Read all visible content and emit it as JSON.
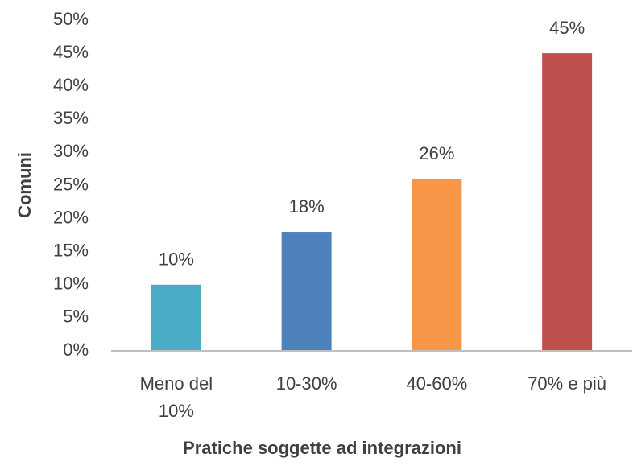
{
  "chart_data": {
    "type": "bar",
    "x_label": "Pratiche soggette ad integrazioni",
    "y_label": "Comuni",
    "categories": [
      "Meno del 10%",
      "10-30%",
      "40-60%",
      "70% e più"
    ],
    "values": [
      10,
      18,
      26,
      45
    ],
    "value_labels": [
      "10%",
      "18%",
      "26%",
      "45%"
    ],
    "colors": [
      "#4bacc6",
      "#4f81bd",
      "#f79646",
      "#c0504d"
    ],
    "ylim": [
      0,
      50
    ],
    "yticks": [
      {
        "value": 0,
        "label": "0%"
      },
      {
        "value": 5,
        "label": "5%"
      },
      {
        "value": 10,
        "label": "10%"
      },
      {
        "value": 15,
        "label": "15%"
      },
      {
        "value": 20,
        "label": "20%"
      },
      {
        "value": 25,
        "label": "25%"
      },
      {
        "value": 30,
        "label": "30%"
      },
      {
        "value": 35,
        "label": "35%"
      },
      {
        "value": 40,
        "label": "40%"
      },
      {
        "value": 45,
        "label": "45%"
      },
      {
        "value": 50,
        "label": "50%"
      }
    ],
    "grid": false
  }
}
